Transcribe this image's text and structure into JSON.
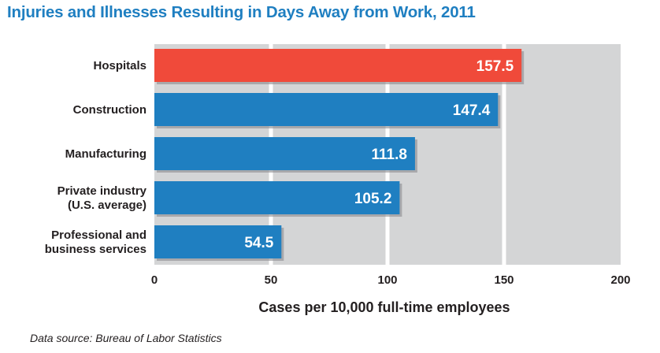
{
  "chart_data": {
    "type": "bar",
    "orientation": "horizontal",
    "title": "Injuries and Illnesses Resulting in Days Away from Work, 2011",
    "xlabel": "Cases per 10,000 full-time employees",
    "ylabel": "",
    "categories": [
      [
        "Hospitals"
      ],
      [
        "Construction"
      ],
      [
        "Manufacturing"
      ],
      [
        "Private industry",
        "(U.S. average)"
      ],
      [
        "Professional and",
        "business services"
      ]
    ],
    "values": [
      157.5,
      147.4,
      111.8,
      105.2,
      54.5
    ],
    "value_labels": [
      "157.5",
      "147.4",
      "111.8",
      "105.2",
      "54.5"
    ],
    "bar_colors": [
      "#f04a3a",
      "#1f7fc1",
      "#1f7fc1",
      "#1f7fc1",
      "#1f7fc1"
    ],
    "xlim": [
      0,
      200
    ],
    "xticks": [
      0,
      50,
      100,
      150,
      200
    ],
    "xtick_labels": [
      "0",
      "50",
      "100",
      "150",
      "200"
    ],
    "grid": true,
    "plot_background": "#d4d5d6",
    "highlight_color": "#f04a3a",
    "bar_color": "#1f7fc1",
    "title_color": "#1f7fc1",
    "source": "Data source: Bureau of Labor Statistics"
  }
}
